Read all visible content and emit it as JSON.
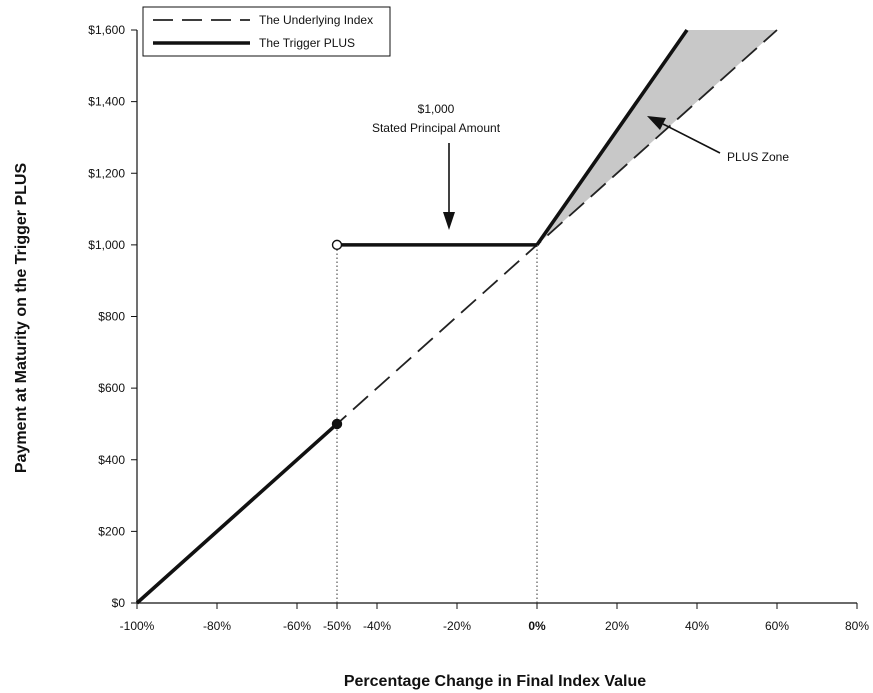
{
  "chart_data": {
    "type": "line",
    "xlabel": "Percentage Change in Final Index Value",
    "ylabel": "Payment at Maturity on the Trigger PLUS",
    "xlim": [
      -100,
      80
    ],
    "ylim": [
      0,
      1600
    ],
    "x_ticks": [
      -100,
      -80,
      -60,
      -50,
      -40,
      -20,
      0,
      20,
      40,
      60,
      80
    ],
    "x_tick_labels": [
      "-100%",
      "-80%",
      "-60%",
      "-50%",
      "-40%",
      "-20%",
      "0%",
      "20%",
      "40%",
      "60%",
      "80%"
    ],
    "y_ticks": [
      0,
      200,
      400,
      600,
      800,
      1000,
      1200,
      1400,
      1600
    ],
    "y_tick_labels": [
      "$0",
      "$200",
      "$400",
      "$600",
      "$800",
      "$1,000",
      "$1,200",
      "$1,400",
      "$1,600"
    ],
    "grid": false,
    "legend_position": "top-left",
    "series": [
      {
        "name": "The Underlying Index",
        "style": "dashed",
        "color": "#222222",
        "x": [
          -100,
          60
        ],
        "y": [
          0,
          1600
        ]
      },
      {
        "name": "The Trigger PLUS",
        "style": "solid-thick",
        "color": "#111111",
        "segments": [
          {
            "x": [
              -100,
              -50
            ],
            "y": [
              0,
              500
            ]
          },
          {
            "x": [
              -50,
              0
            ],
            "y": [
              1000,
              1000
            ]
          },
          {
            "x": [
              0,
              37.5
            ],
            "y": [
              1000,
              1600
            ]
          }
        ]
      }
    ],
    "markers": [
      {
        "x": -50,
        "y": 1000,
        "fill": "open"
      },
      {
        "x": -50,
        "y": 500,
        "fill": "filled"
      }
    ],
    "reference_lines": [
      {
        "x": -50,
        "y_to": 1000,
        "style": "dotted"
      },
      {
        "x": 0,
        "y_to": 1000,
        "style": "dotted"
      }
    ],
    "shaded_region": {
      "label": "PLUS Zone",
      "color": "#c8c8c8",
      "points": [
        [
          0,
          1000
        ],
        [
          37.5,
          1600
        ],
        [
          60,
          1600
        ]
      ]
    },
    "annotations": [
      {
        "text_lines": [
          "$1,000",
          "Stated Principal Amount"
        ],
        "x": -22,
        "y": 1045
      },
      {
        "text": "PLUS Zone",
        "x": 31,
        "y": 1340
      }
    ]
  }
}
